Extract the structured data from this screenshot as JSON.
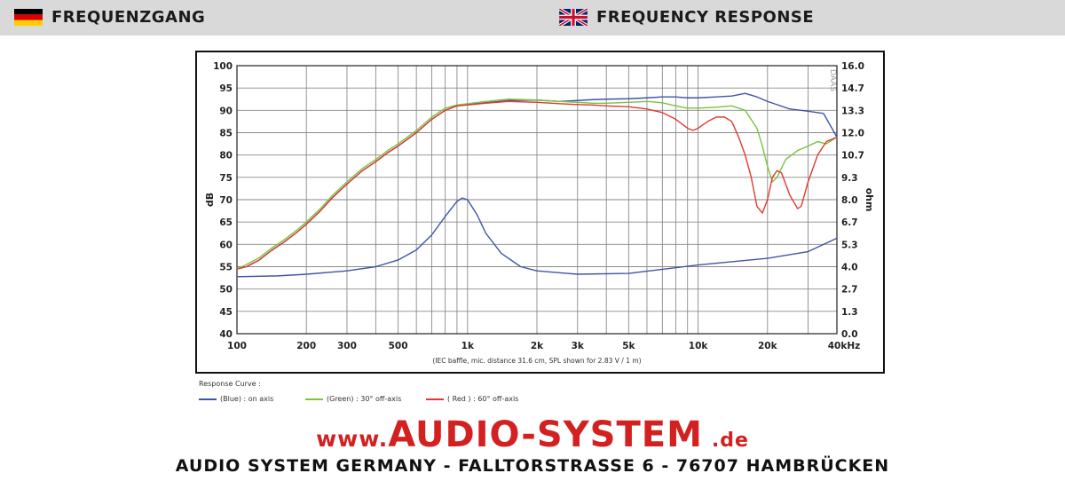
{
  "header": {
    "left_title": "FREQUENZGANG",
    "right_title": "FREQUENCY RESPONSE",
    "left_flag": "germany-flag",
    "right_flag": "uk-flag"
  },
  "chart_data": {
    "type": "line",
    "x_scale": "log",
    "xlim": [
      100,
      40000
    ],
    "ylim": [
      40,
      100
    ],
    "y2lim": [
      0.0,
      16.0
    ],
    "x_ticks": [
      100,
      200,
      300,
      500,
      1000,
      2000,
      3000,
      5000,
      10000,
      20000,
      40000
    ],
    "x_tick_labels": [
      "100",
      "200",
      "300",
      "500",
      "1k",
      "2k",
      "3k",
      "5k",
      "10k",
      "20k",
      "40kHz"
    ],
    "y_ticks": [
      40,
      45,
      50,
      55,
      60,
      65,
      70,
      75,
      80,
      85,
      90,
      95,
      100
    ],
    "y_tick_labels": [
      "40",
      "45",
      "50",
      "55",
      "60",
      "65",
      "70",
      "75",
      "80",
      "85",
      "90",
      "95",
      "100"
    ],
    "y2_tick_labels": [
      "0.0",
      "1.3",
      "2.7",
      "4.0",
      "5.3",
      "6.7",
      "8.0",
      "9.3",
      "10.7",
      "12.0",
      "13.3",
      "14.7",
      "16.0"
    ],
    "ylabel": "dB",
    "y2label": "ohm",
    "watermark": "DAAS",
    "note": "(IEC baffle, mic. distance 31.6 cm, SPL shown for 2.83 V / 1 m)",
    "grid": true,
    "series": [
      {
        "name": "(Blue) : on axis",
        "color": "#3f55a5",
        "axis": "left",
        "x": [
          100,
          110,
          125,
          140,
          160,
          180,
          200,
          230,
          260,
          300,
          350,
          400,
          450,
          500,
          600,
          700,
          800,
          900,
          1000,
          1200,
          1500,
          2000,
          2500,
          3000,
          3500,
          4000,
          5000,
          6000,
          7000,
          8000,
          9000,
          10000,
          12000,
          14000,
          16000,
          18000,
          20000,
          25000,
          30000,
          35000,
          40000
        ],
        "y": [
          54.5,
          55,
          56.5,
          58.5,
          60.5,
          62.5,
          64.5,
          67.5,
          70.5,
          73.5,
          76.5,
          78.5,
          80.5,
          82,
          85,
          88,
          90,
          91,
          91.3,
          91.7,
          92.2,
          92.3,
          92,
          92.2,
          92.4,
          92.5,
          92.6,
          92.8,
          93,
          93,
          92.8,
          92.8,
          93,
          93.2,
          93.8,
          93,
          92,
          90.3,
          89.8,
          89.3,
          84
        ]
      },
      {
        "name": "(Green) : 30° off-axis",
        "color": "#78c43c",
        "axis": "left",
        "x": [
          100,
          110,
          125,
          140,
          160,
          180,
          200,
          230,
          260,
          300,
          350,
          400,
          450,
          500,
          600,
          700,
          800,
          900,
          1000,
          1200,
          1500,
          2000,
          2500,
          3000,
          3500,
          4000,
          5000,
          6000,
          7000,
          8000,
          9000,
          10000,
          12000,
          14000,
          16000,
          18000,
          19000,
          20000,
          21000,
          22000,
          24000,
          27000,
          30000,
          33000,
          36000,
          40000
        ],
        "y": [
          54.5,
          55.5,
          57,
          59,
          61,
          63,
          65,
          68,
          71,
          74,
          77,
          79,
          81,
          82.5,
          85.5,
          88.5,
          90.5,
          91.2,
          91.5,
          92,
          92.5,
          92.3,
          92,
          91.8,
          91.6,
          91.6,
          91.8,
          92,
          91.7,
          91,
          90.5,
          90.5,
          90.7,
          91,
          90,
          86,
          82,
          77.5,
          74,
          75,
          79,
          81,
          82,
          83,
          82.5,
          84
        ]
      },
      {
        "name": "( Red ) : 60° off-axis",
        "color": "#e03a30",
        "axis": "left",
        "x": [
          100,
          110,
          125,
          140,
          160,
          180,
          200,
          230,
          260,
          300,
          350,
          400,
          450,
          500,
          600,
          700,
          800,
          900,
          1000,
          1200,
          1500,
          2000,
          2500,
          3000,
          3500,
          4000,
          5000,
          6000,
          7000,
          8000,
          9000,
          9500,
          10000,
          11000,
          12000,
          13000,
          14000,
          15000,
          16000,
          17000,
          18000,
          19000,
          20000,
          21000,
          22000,
          23000,
          25000,
          27000,
          28000,
          30000,
          33000,
          36000,
          40000
        ],
        "y": [
          54.5,
          55,
          56.5,
          58.5,
          60.5,
          62.5,
          64.5,
          67.5,
          70.5,
          73.5,
          76.5,
          78.5,
          80.5,
          82,
          85,
          88,
          90,
          91,
          91.2,
          91.6,
          92,
          91.8,
          91.5,
          91.3,
          91.2,
          91,
          90.8,
          90.3,
          89.5,
          88,
          86,
          85.5,
          86,
          87.5,
          88.5,
          88.5,
          87.5,
          84,
          80,
          75,
          68.5,
          67,
          70,
          75,
          76.5,
          76,
          71,
          68,
          68.5,
          74,
          80,
          83,
          84
        ]
      },
      {
        "name": "impedance",
        "color": "#3f55a5",
        "axis": "right",
        "x": [
          100,
          150,
          200,
          300,
          400,
          500,
          600,
          700,
          800,
          900,
          950,
          1000,
          1100,
          1200,
          1400,
          1700,
          2000,
          3000,
          5000,
          10000,
          20000,
          30000,
          40000
        ],
        "y": [
          3.4,
          3.45,
          3.55,
          3.75,
          4.0,
          4.4,
          5.0,
          5.9,
          7.0,
          7.9,
          8.1,
          8.0,
          7.1,
          6.0,
          4.8,
          4.0,
          3.75,
          3.55,
          3.6,
          4.1,
          4.5,
          4.9,
          5.7
        ]
      }
    ]
  },
  "legend": {
    "title": "Response Curve :",
    "items": [
      "(Blue) : on axis",
      "(Green) : 30° off-axis",
      "( Red ) : 60° off-axis"
    ],
    "colors": [
      "#3f55a5",
      "#78c43c",
      "#e03a30"
    ]
  },
  "brand": {
    "prefix": "www.",
    "main": "AUDIO-SYSTEM",
    "suffix": ".de",
    "color": "#d32020"
  },
  "footer": {
    "address": "AUDIO SYSTEM GERMANY - FALLTORSTRASSE 6 - 76707 HAMBRÜCKEN"
  }
}
